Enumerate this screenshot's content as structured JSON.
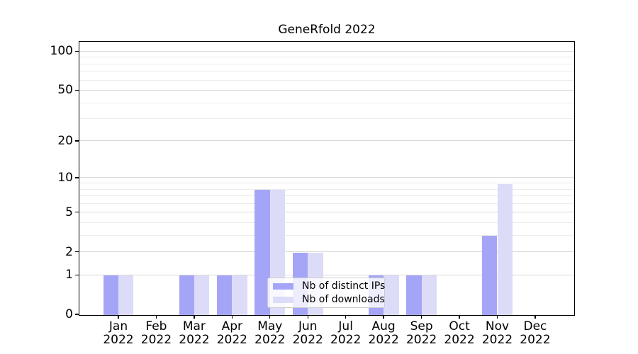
{
  "title": "GeneRfold 2022",
  "chart_data": {
    "type": "bar",
    "title": "GeneRfold 2022",
    "xlabel": "",
    "ylabel": "",
    "categories": [
      "Jan 2022",
      "Feb 2022",
      "Mar 2022",
      "Apr 2022",
      "May 2022",
      "Jun 2022",
      "Jul 2022",
      "Aug 2022",
      "Sep 2022",
      "Oct 2022",
      "Nov 2022",
      "Dec 2022"
    ],
    "xtick_labels": [
      [
        "Jan",
        "2022"
      ],
      [
        "Feb",
        "2022"
      ],
      [
        "Mar",
        "2022"
      ],
      [
        "Apr",
        "2022"
      ],
      [
        "May",
        "2022"
      ],
      [
        "Jun",
        "2022"
      ],
      [
        "Jul",
        "2022"
      ],
      [
        "Aug",
        "2022"
      ],
      [
        "Sep",
        "2022"
      ],
      [
        "Oct",
        "2022"
      ],
      [
        "Nov",
        "2022"
      ],
      [
        "Dec",
        "2022"
      ]
    ],
    "series": [
      {
        "name": "Nb of distinct IPs",
        "color": "#a5a5f7",
        "values": [
          1,
          0,
          1,
          1,
          8,
          2,
          0,
          1,
          1,
          0,
          3,
          0
        ]
      },
      {
        "name": "Nb of downloads",
        "color": "#dcdcf9",
        "values": [
          1,
          0,
          1,
          1,
          8,
          2,
          0,
          1,
          1,
          0,
          9,
          0
        ]
      }
    ],
    "yscale": "log1p",
    "ylim": [
      0,
      118
    ],
    "yticks": [
      {
        "label": "100",
        "value": 100
      },
      {
        "label": "50",
        "value": 50
      },
      {
        "label": "20",
        "value": 20
      },
      {
        "label": "10",
        "value": 10
      },
      {
        "label": "5",
        "value": 5
      },
      {
        "label": "2",
        "value": 2
      },
      {
        "label": "1",
        "value": 1
      },
      {
        "label": "0",
        "value": 0
      }
    ],
    "minor_gridlines": [
      3,
      4,
      6,
      7,
      8,
      9,
      30,
      40,
      60,
      70,
      80,
      90
    ],
    "major_gridlines": [
      1,
      2,
      5,
      10,
      20,
      50,
      100
    ],
    "grid": true,
    "legend_position": "lower center"
  },
  "colors": {
    "background": "#ffffff",
    "spine": "#000000",
    "grid_major": "#d9d9d9",
    "grid_minor": "#ececec",
    "legend_border": "#cccccc",
    "series_ips": "#a5a5f7",
    "series_downloads": "#dcdcf9"
  }
}
